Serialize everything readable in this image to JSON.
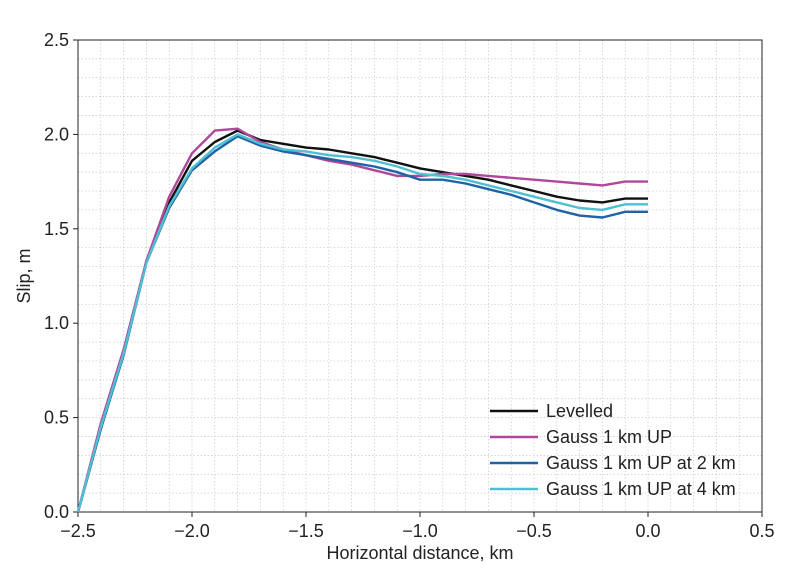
{
  "chart_data": {
    "type": "line",
    "title": "",
    "xlabel": "Horizontal distance, km",
    "ylabel": "Slip, m",
    "xlim": [
      -2.5,
      0.5
    ],
    "ylim": [
      0.0,
      2.5
    ],
    "xticks": [
      -2.5,
      -2.0,
      -1.5,
      -1.0,
      -0.5,
      0.0,
      0.5
    ],
    "xtick_labels": [
      "−2.5",
      "−2.0",
      "−1.5",
      "−1.0",
      "−0.5",
      "0.0",
      "0.5"
    ],
    "yticks": [
      0.0,
      0.5,
      1.0,
      1.5,
      2.0,
      2.5
    ],
    "ytick_labels": [
      "0.0",
      "0.5",
      "1.0",
      "1.5",
      "2.0",
      "2.5"
    ],
    "grid": true,
    "minor_grid": true,
    "legend_position": "bottom-right",
    "x": [
      -2.5,
      -2.4,
      -2.3,
      -2.2,
      -2.1,
      -2.0,
      -1.9,
      -1.8,
      -1.7,
      -1.6,
      -1.5,
      -1.4,
      -1.3,
      -1.2,
      -1.1,
      -1.0,
      -0.9,
      -0.8,
      -0.7,
      -0.6,
      -0.5,
      -0.4,
      -0.3,
      -0.2,
      -0.1,
      0.0
    ],
    "series": [
      {
        "name": "Levelled",
        "color": "#111111",
        "values": [
          0.0,
          0.44,
          0.84,
          1.33,
          1.64,
          1.86,
          1.96,
          2.02,
          1.97,
          1.95,
          1.93,
          1.92,
          1.9,
          1.88,
          1.85,
          1.82,
          1.8,
          1.78,
          1.76,
          1.73,
          1.7,
          1.67,
          1.65,
          1.64,
          1.66,
          1.66
        ]
      },
      {
        "name": "Gauss 1 km UP",
        "color": "#b0479b",
        "values": [
          0.0,
          0.47,
          0.86,
          1.33,
          1.67,
          1.9,
          2.02,
          2.03,
          1.96,
          1.92,
          1.89,
          1.86,
          1.84,
          1.81,
          1.78,
          1.78,
          1.79,
          1.79,
          1.78,
          1.77,
          1.76,
          1.75,
          1.74,
          1.73,
          1.75,
          1.75
        ]
      },
      {
        "name": "Gauss 1 km UP at 2 km",
        "color": "#1f63a6",
        "values": [
          0.0,
          0.44,
          0.83,
          1.32,
          1.61,
          1.81,
          1.91,
          1.99,
          1.94,
          1.91,
          1.89,
          1.87,
          1.85,
          1.83,
          1.8,
          1.76,
          1.76,
          1.74,
          1.71,
          1.68,
          1.64,
          1.6,
          1.57,
          1.56,
          1.59,
          1.59
        ]
      },
      {
        "name": "Gauss 1 km UP at 4 km",
        "color": "#4fbfd2",
        "values": [
          0.0,
          0.45,
          0.84,
          1.32,
          1.62,
          1.82,
          1.93,
          2.0,
          1.95,
          1.92,
          1.91,
          1.89,
          1.88,
          1.86,
          1.83,
          1.79,
          1.78,
          1.76,
          1.73,
          1.7,
          1.67,
          1.64,
          1.61,
          1.6,
          1.63,
          1.63
        ]
      }
    ]
  }
}
